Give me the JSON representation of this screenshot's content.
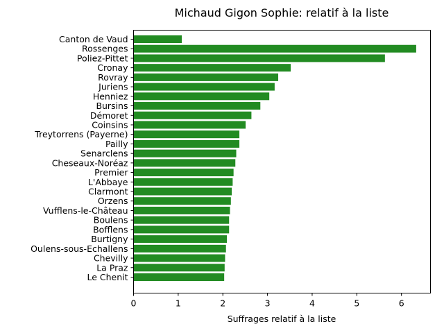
{
  "chart_data": {
    "type": "bar",
    "orientation": "horizontal",
    "title": "Michaud Gigon Sophie: relatif à la liste",
    "xlabel": "Suffrages relatif à la liste",
    "ylabel": "",
    "xlim": [
      0,
      6.65
    ],
    "xticks": [
      0,
      1,
      2,
      3,
      4,
      5,
      6
    ],
    "grid": false,
    "bar_color": "#228b22",
    "categories": [
      "Canton de Vaud",
      "Rossenges",
      "Poliez-Pittet",
      "Cronay",
      "Rovray",
      "Juriens",
      "Henniez",
      "Bursins",
      "Démoret",
      "Coinsins",
      "Treytorrens (Payerne)",
      "Pailly",
      "Senarclens",
      "Cheseaux-Noréaz",
      "Premier",
      "L'Abbaye",
      "Clarmont",
      "Orzens",
      "Vufflens-le-Château",
      "Boulens",
      "Bofflens",
      "Burtigny",
      "Oulens-sous-Echallens",
      "Chevilly",
      "La Praz",
      "Le Chenit"
    ],
    "values": [
      1.08,
      6.33,
      5.63,
      3.52,
      3.24,
      3.16,
      3.04,
      2.84,
      2.64,
      2.51,
      2.37,
      2.37,
      2.3,
      2.28,
      2.24,
      2.22,
      2.2,
      2.18,
      2.16,
      2.14,
      2.14,
      2.09,
      2.07,
      2.05,
      2.04,
      2.03
    ]
  }
}
